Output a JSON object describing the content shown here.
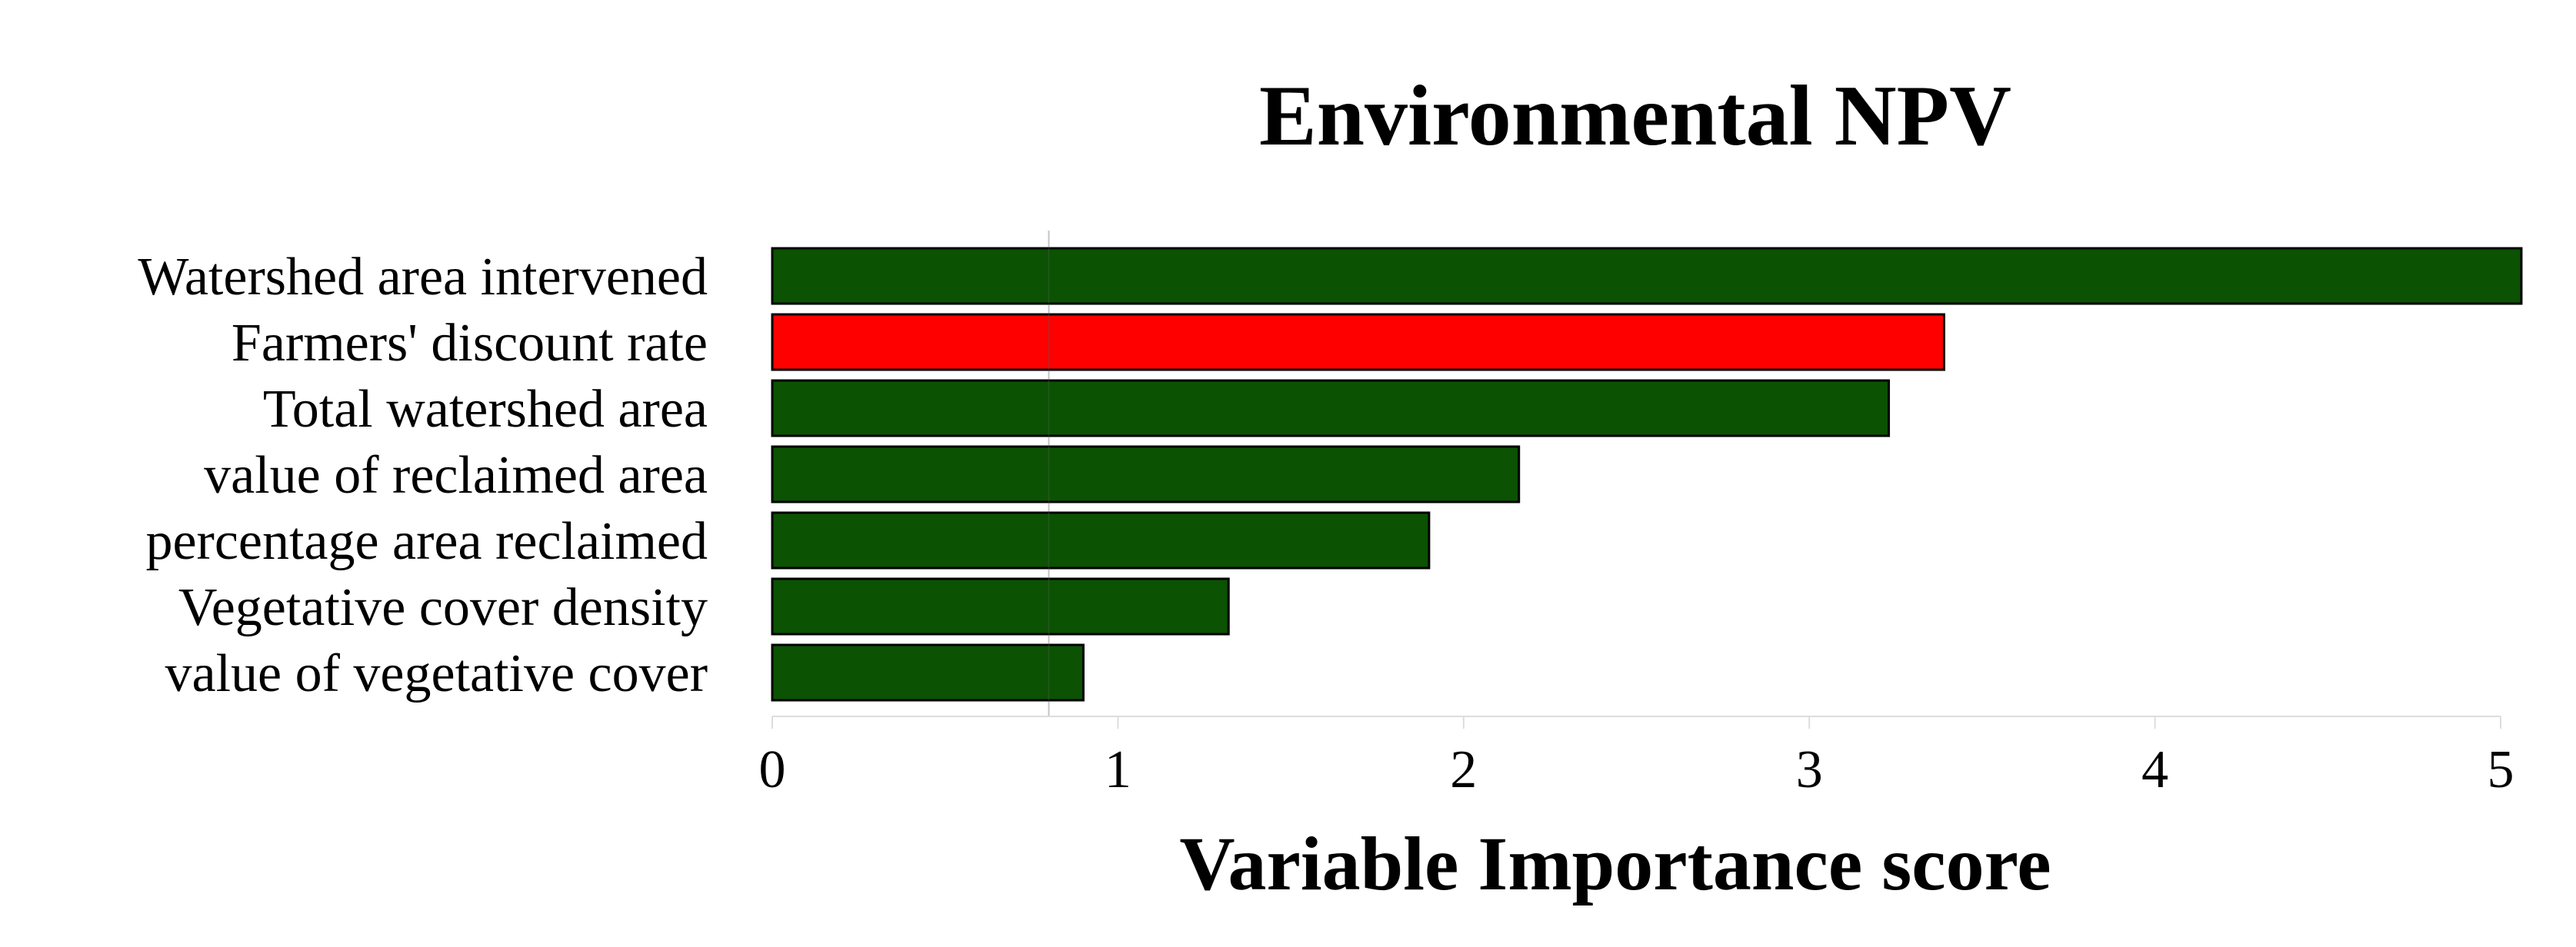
{
  "chart_data": {
    "type": "bar",
    "orientation": "horizontal",
    "title": "Environmental NPV",
    "xlabel": "Variable Importance score",
    "ylabel": "",
    "categories": [
      "Watershed area intervened",
      "Farmers' discount rate",
      "Total watershed area",
      "value of reclaimed area",
      "percentage area reclaimed",
      "Vegetative cover density",
      "value of vegetative cover"
    ],
    "values": [
      5.06,
      3.39,
      3.23,
      2.16,
      1.9,
      1.32,
      0.9
    ],
    "colors": [
      "#0b5203",
      "#ff0000",
      "#0b5203",
      "#0b5203",
      "#0b5203",
      "#0b5203",
      "#0b5203"
    ],
    "xlim": [
      0,
      5
    ],
    "xticks": [
      "0",
      "1",
      "2",
      "3",
      "4",
      "5"
    ],
    "reference_line": 0.8,
    "grid": false
  }
}
